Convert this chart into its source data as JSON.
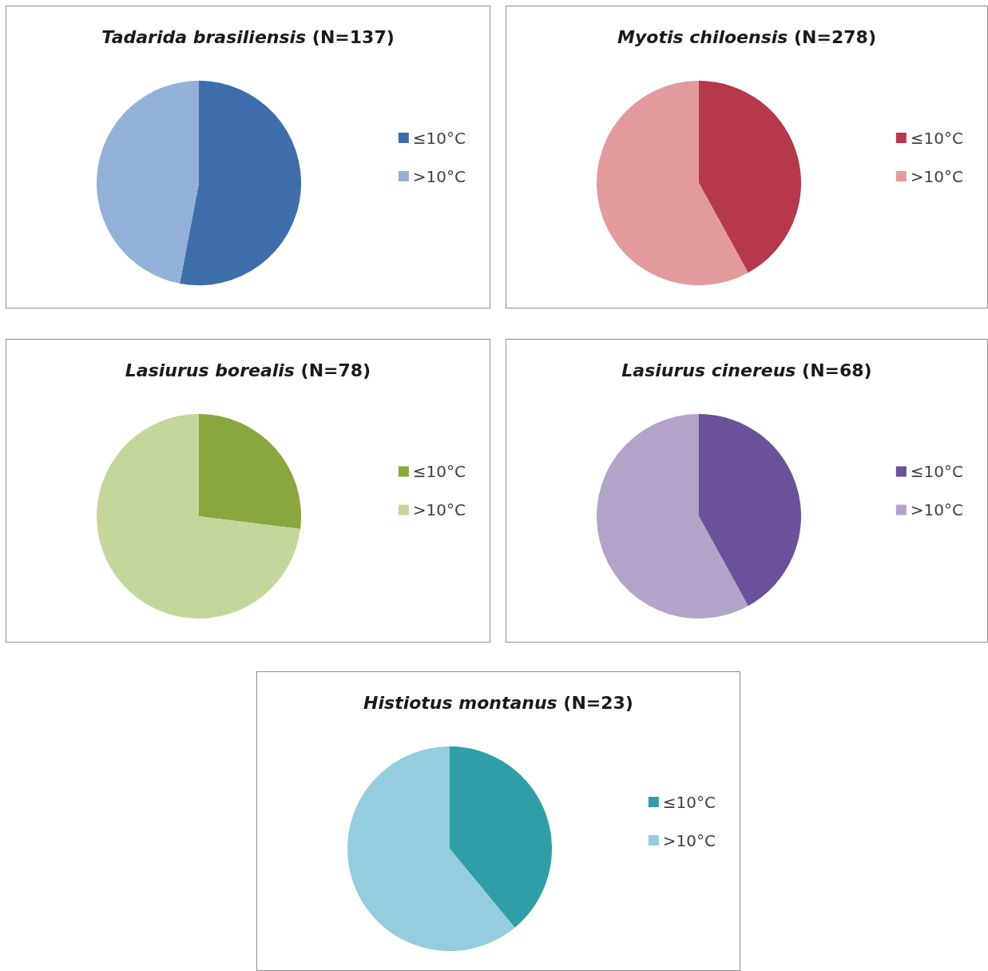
{
  "chart_data": [
    {
      "type": "pie",
      "title": "Tadarida brasiliensis (N=137)",
      "categories": [
        "≤10°C",
        ">10°C"
      ],
      "values": [
        53,
        47
      ],
      "colors": [
        "#3d6eab",
        "#93b1d8"
      ],
      "legend": "right"
    },
    {
      "type": "pie",
      "title": "Myotis chiloensis (N=278)",
      "categories": [
        "≤10°C",
        ">10°C"
      ],
      "values": [
        42,
        58
      ],
      "colors": [
        "#b5394b",
        "#e39a9d"
      ],
      "legend": "right"
    },
    {
      "type": "pie",
      "title": "Lasiurus borealis (N=78)",
      "categories": [
        "≤10°C",
        ">10°C"
      ],
      "values": [
        27,
        73
      ],
      "colors": [
        "#8aa73e",
        "#c4d79b"
      ],
      "legend": "right"
    },
    {
      "type": "pie",
      "title": "Lasiurus cinereus (N=68)",
      "categories": [
        "≤10°C",
        ">10°C"
      ],
      "values": [
        42,
        58
      ],
      "colors": [
        "#6b5199",
        "#b3a3c8"
      ],
      "legend": "right"
    },
    {
      "type": "pie",
      "title": "Histiotus montanus (N=23)",
      "categories": [
        "≤10°C",
        ">10°C"
      ],
      "values": [
        39,
        61
      ],
      "colors": [
        "#2f9ea6",
        "#94cdde"
      ],
      "legend": "right"
    }
  ]
}
